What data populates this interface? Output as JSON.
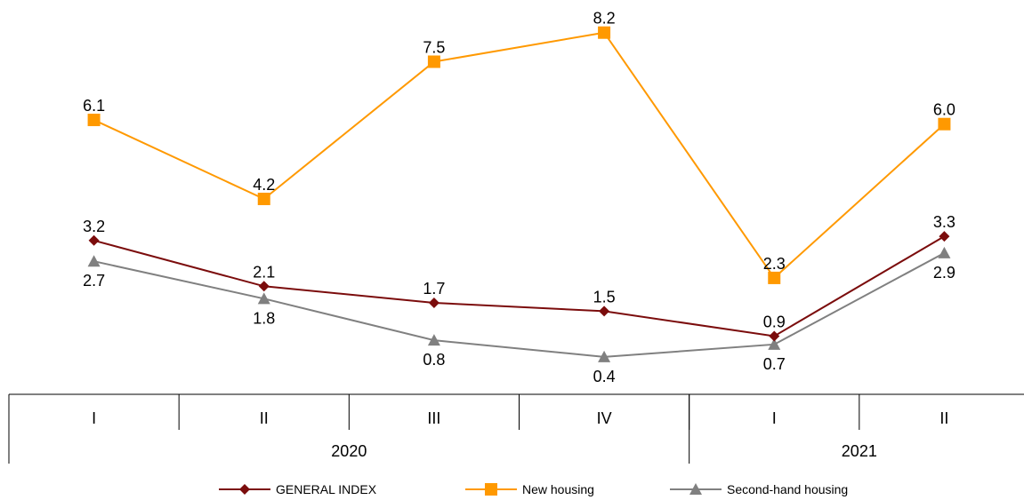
{
  "chart_data": {
    "type": "line",
    "title": "",
    "xlabel": "",
    "ylabel": "",
    "categories": [
      "I",
      "II",
      "III",
      "IV",
      "I",
      "II"
    ],
    "years": [
      {
        "label": "2020",
        "quarters": 4
      },
      {
        "label": "2021",
        "quarters": 2
      }
    ],
    "ylim": [
      -0.5,
      8.6
    ],
    "grid": false,
    "legend_position": "bottom",
    "series": [
      {
        "name": "GENERAL INDEX",
        "color": "#7b0c0c",
        "marker": "diamond",
        "label_position": "above",
        "values": [
          3.2,
          2.1,
          1.7,
          1.5,
          0.9,
          3.3
        ]
      },
      {
        "name": "New housing",
        "color": "#ff9900",
        "marker": "square",
        "label_position": "above",
        "values": [
          6.1,
          4.2,
          7.5,
          8.2,
          2.3,
          6.0
        ]
      },
      {
        "name": "Second-hand housing",
        "color": "#808080",
        "marker": "triangle",
        "label_position": "below",
        "values": [
          2.7,
          1.8,
          0.8,
          0.4,
          0.7,
          2.9
        ]
      }
    ]
  }
}
